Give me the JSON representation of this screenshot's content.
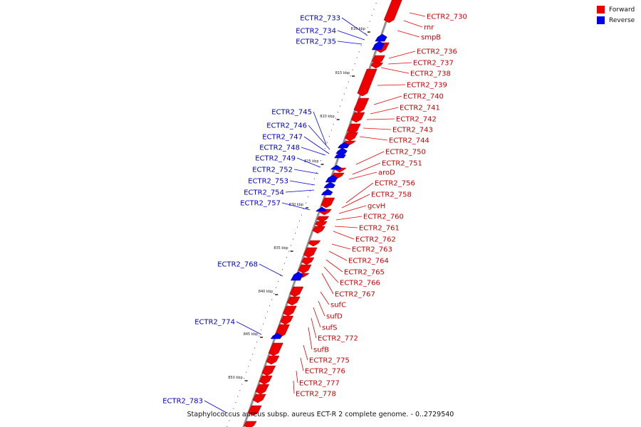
{
  "legend": {
    "forward_label": "Forward",
    "reverse_label": "Reverse",
    "forward_color": "#ee0000",
    "reverse_color": "#0000ee"
  },
  "caption": "Staphylococcus aureus subsp. aureus ECT-R 2 complete genome. - 0..2729540",
  "ticks": [
    "810 kbp",
    "815 kbp",
    "820 kbp",
    "825 kbp",
    "830 kbp",
    "835 kbp",
    "840 kbp",
    "845 kbp",
    "850 kbp"
  ],
  "reverse_genes": [
    "ECTR2_733",
    "ECTR2_734",
    "ECTR2_735",
    "ECTR2_745",
    "ECTR2_746",
    "ECTR2_747",
    "ECTR2_748",
    "ECTR2_749",
    "ECTR2_752",
    "ECTR2_753",
    "ECTR2_754",
    "ECTR2_757",
    "ECTR2_768",
    "ECTR2_774",
    "ECTR2_783"
  ],
  "forward_genes": [
    "ECTR2_730",
    "rnr",
    "smpB",
    "ECTR2_736",
    "ECTR2_737",
    "ECTR2_738",
    "ECTR2_739",
    "ECTR2_740",
    "ECTR2_741",
    "ECTR2_742",
    "ECTR2_743",
    "ECTR2_744",
    "ECTR2_750",
    "ECTR2_751",
    "aroD",
    "ECTR2_756",
    "ECTR2_758",
    "gcvH",
    "ECTR2_760",
    "ECTR2_761",
    "ECTR2_762",
    "ECTR2_763",
    "ECTR2_764",
    "ECTR2_765",
    "ECTR2_766",
    "ECTR2_767",
    "sufC",
    "sufD",
    "sufS",
    "ECTR2_772",
    "sufB",
    "ECTR2_775",
    "ECTR2_776",
    "ECTR2_777",
    "ECTR2_778"
  ]
}
